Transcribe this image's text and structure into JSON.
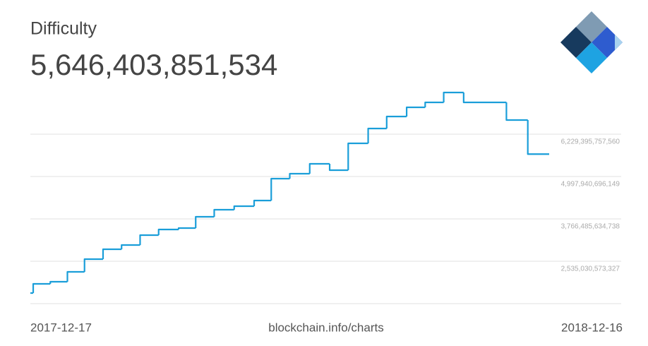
{
  "chart_data": {
    "type": "line",
    "line_style": "step",
    "title": "Difficulty",
    "subtitle": "5,646,403,851,534",
    "source": "blockchain.info/charts",
    "xlim": [
      "2017-12-17",
      "2018-12-16"
    ],
    "ylim": [
      1303575511916,
      7460850818971
    ],
    "yticks": [
      {
        "value": 2535030573327,
        "label": "2,535,030,573,327"
      },
      {
        "value": 3766485634738,
        "label": "3,766,485,634,738"
      },
      {
        "value": 4997940696149,
        "label": "4,997,940,696,149"
      },
      {
        "value": 6229395757560,
        "label": "6,229,395,757,560"
      }
    ],
    "grid": true,
    "series": [
      {
        "color": "#1a9ed9",
        "x": [
          "2017-12-17",
          "2017-12-19",
          "2017-12-31",
          "2018-01-12",
          "2018-01-24",
          "2018-02-06",
          "2018-02-19",
          "2018-03-04",
          "2018-03-17",
          "2018-03-31",
          "2018-04-12",
          "2018-04-25",
          "2018-05-09",
          "2018-05-23",
          "2018-06-04",
          "2018-06-17",
          "2018-07-01",
          "2018-07-15",
          "2018-07-28",
          "2018-08-11",
          "2018-08-24",
          "2018-09-07",
          "2018-09-20",
          "2018-10-03",
          "2018-10-17",
          "2018-11-16",
          "2018-12-01",
          "2018-12-16"
        ],
        "values": [
          1611000000000,
          1878000000000,
          1940000000000,
          2227000000000,
          2597000000000,
          2884000000000,
          3007000000000,
          3294000000000,
          3459000000000,
          3500000000000,
          3828000000000,
          4033000000000,
          4136000000000,
          4300000000000,
          4936000000000,
          5080000000000,
          5367000000000,
          5183000000000,
          5963000000000,
          6394000000000,
          6743000000000,
          7009000000000,
          7153000000000,
          7440000000000,
          7153000000000,
          6640000000000,
          5650000000000,
          5650000000000
        ]
      }
    ]
  }
}
